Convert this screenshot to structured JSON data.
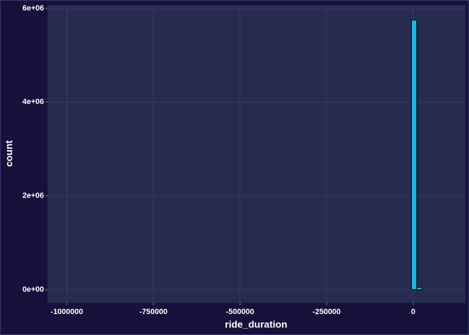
{
  "chart_data": {
    "type": "histogram",
    "x_label": "ride_duration",
    "y_label": "count",
    "bins": [
      -1010000,
      -995000,
      -980000,
      -965000,
      -950000,
      -935000,
      -920000,
      -905000,
      -890000,
      -875000,
      -860000,
      -845000,
      -830000,
      -815000,
      -800000,
      -785000,
      -770000,
      -755000,
      -740000,
      -725000,
      -710000,
      -695000,
      -680000,
      -665000,
      -650000,
      -635000,
      -620000,
      -605000,
      -590000,
      -575000,
      -560000,
      -545000,
      -530000,
      -515000,
      -500000,
      -485000,
      -470000,
      -455000,
      -440000,
      -425000,
      -410000,
      -395000,
      -380000,
      -365000,
      -350000,
      -335000,
      -320000,
      -305000,
      -290000,
      -275000,
      -260000,
      -245000,
      -230000,
      -215000,
      -200000,
      -185000,
      -170000,
      -155000,
      -140000,
      -125000,
      -110000,
      -95000,
      -80000,
      -65000,
      -50000,
      -35000,
      -20000,
      -5000,
      10000,
      25000,
      40000,
      55000,
      70000,
      85000
    ],
    "values": [
      0,
      0,
      0,
      0,
      0,
      0,
      0,
      0,
      0,
      0,
      0,
      0,
      0,
      0,
      0,
      0,
      0,
      0,
      0,
      0,
      0,
      0,
      0,
      0,
      0,
      0,
      0,
      0,
      0,
      0,
      0,
      0,
      0,
      0,
      0,
      0,
      0,
      0,
      0,
      0,
      0,
      0,
      0,
      0,
      0,
      0,
      0,
      0,
      0,
      0,
      0,
      0,
      0,
      0,
      0,
      0,
      0,
      0,
      0,
      0,
      0,
      0,
      0,
      0,
      0,
      0,
      0,
      5750000,
      50000,
      0,
      0,
      0,
      0
    ],
    "color": "#1fb8e0",
    "xlim": [
      -1056000,
      151000
    ],
    "xticks": [
      -1000000,
      -750000,
      -500000,
      -250000,
      0
    ],
    "ylim": [
      -283000,
      6074000
    ],
    "yticks": [
      {
        "value": 0,
        "label": "0e+00"
      },
      {
        "value": 2000000,
        "label": "2e+06"
      },
      {
        "value": 4000000,
        "label": "4e+06"
      },
      {
        "value": 6000000,
        "label": "6e+06"
      }
    ],
    "grid": true
  }
}
